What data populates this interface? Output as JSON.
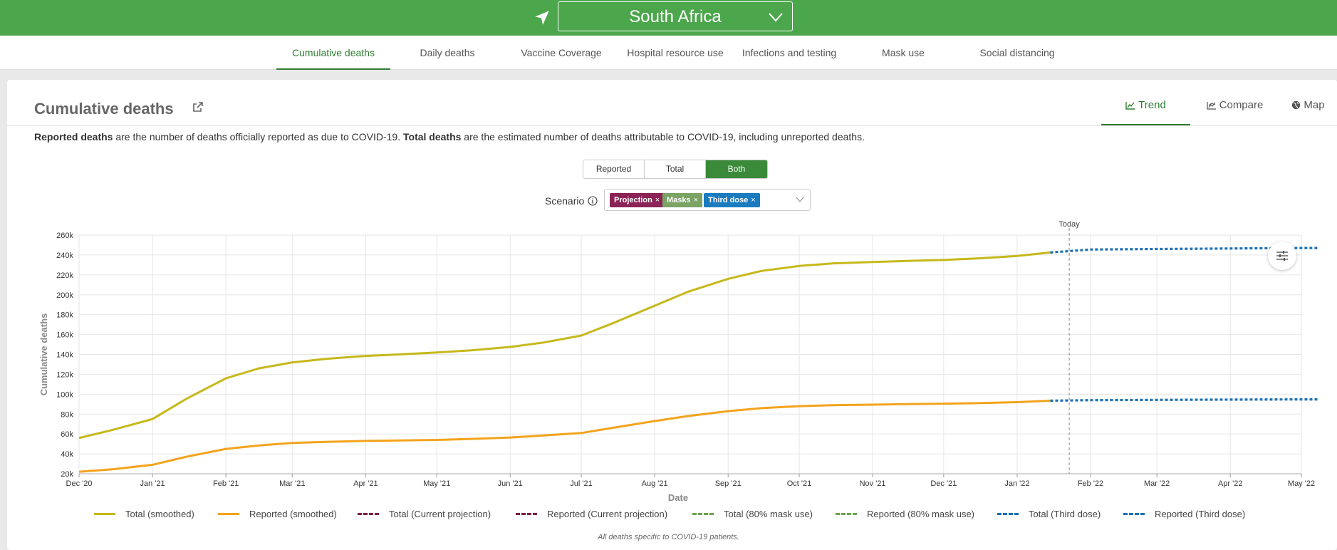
{
  "header": {
    "location": "South Africa"
  },
  "nav_tabs": [
    {
      "label": "Cumulative deaths",
      "active": true
    },
    {
      "label": "Daily deaths"
    },
    {
      "label": "Vaccine Coverage"
    },
    {
      "label": "Hospital resource use"
    },
    {
      "label": "Infections and testing"
    },
    {
      "label": "Mask use"
    },
    {
      "label": "Social distancing"
    }
  ],
  "panel": {
    "title": "Cumulative deaths",
    "view_tabs": [
      {
        "label": "Trend",
        "active": true,
        "icon": "line-chart-icon"
      },
      {
        "label": "Compare",
        "icon": "compare-chart-icon"
      },
      {
        "label": "Map",
        "icon": "globe-icon"
      }
    ],
    "description": {
      "bold1": "Reported deaths",
      "text1": " are the number of deaths officially reported as due to COVID-19. ",
      "bold2": "Total deaths",
      "text2": " are the estimated number of deaths attributable to COVID-19, including unreported deaths."
    },
    "toggle": [
      "Reported",
      "Total",
      "Both"
    ],
    "toggle_selected": "Both",
    "scenario_label": "Scenario",
    "scenarios": [
      {
        "label": "Projection",
        "color": "#8b2357"
      },
      {
        "label": "Masks",
        "color": "#7aa364"
      },
      {
        "label": "Third dose",
        "color": "#1b7bbf"
      }
    ],
    "footnote": "All deaths specific to COVID-19 patients."
  },
  "chart_data": {
    "type": "line",
    "xlabel": "Date",
    "ylabel": "Cumulative deaths",
    "x_ticks": [
      "Dec '20",
      "Jan '21",
      "Feb '21",
      "Mar '21",
      "Apr '21",
      "May '21",
      "Jun '21",
      "Jul '21",
      "Aug '21",
      "Sep '21",
      "Oct '21",
      "Nov '21",
      "Dec '21",
      "Jan '22",
      "Feb '22",
      "Mar '22",
      "Apr '22",
      "May '22"
    ],
    "y_ticks": [
      "20k",
      "40k",
      "60k",
      "80k",
      "100k",
      "120k",
      "140k",
      "160k",
      "180k",
      "200k",
      "220k",
      "240k",
      "260k"
    ],
    "xlim": [
      "2020-12-01",
      "2022-05-01"
    ],
    "ylim": [
      20000,
      260000
    ],
    "today_label": "Today",
    "today_date": "2022-01-23",
    "grid": true,
    "legend_position": "bottom",
    "series": [
      {
        "name": "Total (smoothed)",
        "color": "#c6b81a",
        "style": "solid",
        "points": [
          [
            "2020-12-01",
            56000
          ],
          [
            "2020-12-15",
            64000
          ],
          [
            "2021-01-01",
            75000
          ],
          [
            "2021-01-15",
            95000
          ],
          [
            "2021-02-01",
            116000
          ],
          [
            "2021-02-15",
            126000
          ],
          [
            "2021-03-01",
            132000
          ],
          [
            "2021-03-15",
            135500
          ],
          [
            "2021-04-01",
            138500
          ],
          [
            "2021-04-15",
            140000
          ],
          [
            "2021-05-01",
            142000
          ],
          [
            "2021-05-15",
            144000
          ],
          [
            "2021-06-01",
            147500
          ],
          [
            "2021-06-15",
            152000
          ],
          [
            "2021-07-01",
            159000
          ],
          [
            "2021-07-15",
            172000
          ],
          [
            "2021-08-01",
            189000
          ],
          [
            "2021-08-15",
            203000
          ],
          [
            "2021-09-01",
            216000
          ],
          [
            "2021-09-15",
            224000
          ],
          [
            "2021-10-01",
            229000
          ],
          [
            "2021-10-15",
            231500
          ],
          [
            "2021-11-01",
            233000
          ],
          [
            "2021-11-15",
            234000
          ],
          [
            "2021-12-01",
            235000
          ],
          [
            "2021-12-15",
            236500
          ],
          [
            "2022-01-01",
            239000
          ],
          [
            "2022-01-15",
            242500
          ]
        ]
      },
      {
        "name": "Reported (smoothed)",
        "color": "#f3a31c",
        "style": "solid",
        "points": [
          [
            "2020-12-01",
            22000
          ],
          [
            "2020-12-15",
            24500
          ],
          [
            "2021-01-01",
            29000
          ],
          [
            "2021-01-15",
            37000
          ],
          [
            "2021-02-01",
            45000
          ],
          [
            "2021-02-15",
            48500
          ],
          [
            "2021-03-01",
            51000
          ],
          [
            "2021-03-15",
            52000
          ],
          [
            "2021-04-01",
            53000
          ],
          [
            "2021-04-15",
            53500
          ],
          [
            "2021-05-01",
            54000
          ],
          [
            "2021-05-15",
            55000
          ],
          [
            "2021-06-01",
            56500
          ],
          [
            "2021-06-15",
            58500
          ],
          [
            "2021-07-01",
            61000
          ],
          [
            "2021-07-15",
            66500
          ],
          [
            "2021-08-01",
            73000
          ],
          [
            "2021-08-15",
            78000
          ],
          [
            "2021-09-01",
            83000
          ],
          [
            "2021-09-15",
            86000
          ],
          [
            "2021-10-01",
            88000
          ],
          [
            "2021-10-15",
            89000
          ],
          [
            "2021-11-01",
            89500
          ],
          [
            "2021-11-15",
            90000
          ],
          [
            "2021-12-01",
            90500
          ],
          [
            "2021-12-15",
            91000
          ],
          [
            "2022-01-01",
            92000
          ],
          [
            "2022-01-15",
            93500
          ]
        ]
      },
      {
        "name": "Total (Current projection)",
        "color": "#7a1f47",
        "style": "dashed",
        "points": []
      },
      {
        "name": "Reported (Current projection)",
        "color": "#7a1f47",
        "style": "dashed",
        "points": []
      },
      {
        "name": "Total (80% mask use)",
        "color": "#6aa34f",
        "style": "dashed",
        "points": []
      },
      {
        "name": "Reported (80% mask use)",
        "color": "#6aa34f",
        "style": "dashed",
        "points": []
      },
      {
        "name": "Total (Third dose)",
        "color": "#1b6fb5",
        "style": "dotted",
        "points": [
          [
            "2022-01-15",
            242500
          ],
          [
            "2022-02-01",
            245500
          ],
          [
            "2022-03-01",
            246000
          ],
          [
            "2022-04-01",
            246500
          ],
          [
            "2022-05-01",
            247000
          ],
          [
            "2022-05-08",
            247000
          ]
        ]
      },
      {
        "name": "Reported (Third dose)",
        "color": "#1b6fb5",
        "style": "dotted",
        "points": [
          [
            "2022-01-15",
            93500
          ],
          [
            "2022-02-01",
            94000
          ],
          [
            "2022-03-01",
            94300
          ],
          [
            "2022-04-01",
            94600
          ],
          [
            "2022-05-01",
            94800
          ],
          [
            "2022-05-08",
            94800
          ]
        ]
      }
    ]
  }
}
